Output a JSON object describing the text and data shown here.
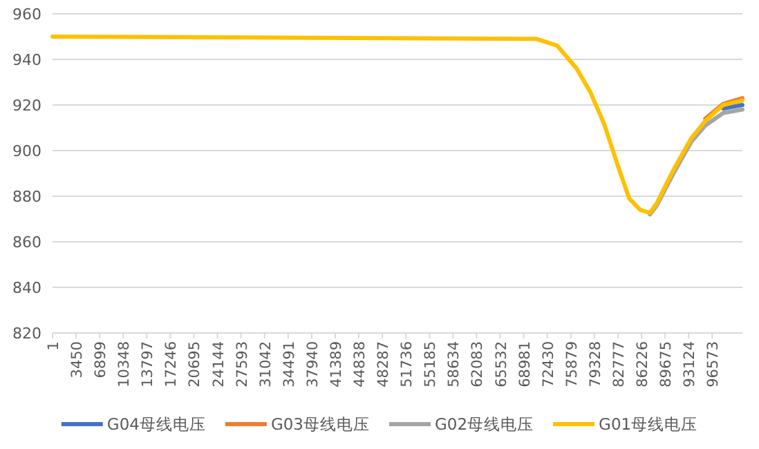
{
  "chart_data": {
    "type": "line",
    "x": [
      1,
      70867,
      73900,
      76738,
      78762,
      80785,
      82810,
      84430,
      86050,
      87466,
      88478,
      90908,
      93540,
      95565,
      98197,
      101000
    ],
    "xlim": [
      1,
      101000
    ],
    "xticks": [
      1,
      3450,
      6899,
      10348,
      13797,
      17246,
      20695,
      24144,
      27593,
      31042,
      34491,
      37940,
      41389,
      44838,
      48287,
      51736,
      55185,
      58634,
      62083,
      65532,
      68981,
      72430,
      75879,
      79328,
      82777,
      86226,
      89675,
      93124,
      96573
    ],
    "ylim": [
      820,
      960
    ],
    "yticks": [
      820,
      840,
      860,
      880,
      900,
      920,
      940,
      960
    ],
    "grid": "y",
    "legend": "bottom",
    "series": [
      {
        "name": "G04母线电压",
        "color": "#4472c4",
        "values": [
          null,
          null,
          null,
          null,
          null,
          null,
          null,
          null,
          null,
          null,
          null,
          null,
          null,
          null,
          918.5,
          920
        ]
      },
      {
        "name": "G03母线电压",
        "color": "#ed7d31",
        "values": [
          null,
          null,
          null,
          null,
          null,
          null,
          null,
          null,
          null,
          null,
          null,
          null,
          null,
          914,
          920.5,
          923
        ]
      },
      {
        "name": "G02母线电压",
        "color": "#a5a5a5",
        "values": [
          null,
          null,
          null,
          null,
          null,
          null,
          null,
          null,
          null,
          872,
          876,
          890,
          904,
          911,
          916.5,
          918
        ]
      },
      {
        "name": "G01母线电压",
        "color": "#ffc000",
        "values": [
          950,
          949,
          946,
          936,
          925.5,
          911.5,
          893,
          879,
          874,
          872.7,
          877,
          891.5,
          905.5,
          913,
          920,
          922
        ]
      }
    ]
  }
}
